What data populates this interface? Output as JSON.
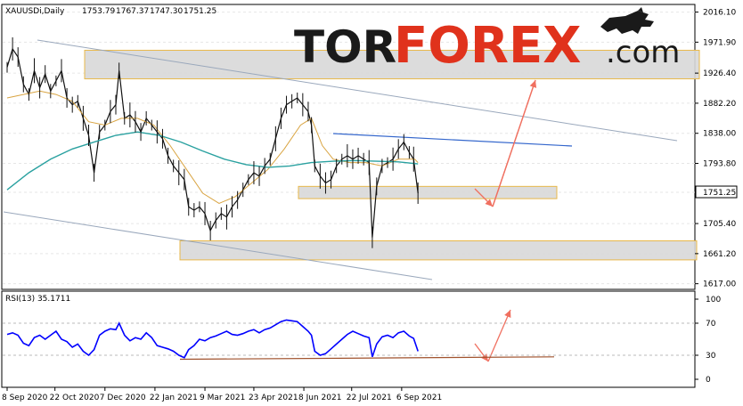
{
  "chart_data": {
    "type": "line",
    "symbol": "XAUUSDi,Daily",
    "ohlc": [
      "1753.79",
      "1767.37",
      "1747.30",
      "1751.25"
    ],
    "price_ticks": [
      "2016.10",
      "1971.90",
      "1926.40",
      "1882.20",
      "1838.00",
      "1793.80",
      "1751.25",
      "1705.40",
      "1661.20",
      "1617.00"
    ],
    "current_price": "1751.25",
    "ylim": [
      1610,
      2026
    ],
    "date_ticks": [
      "8 Sep 2020",
      "22 Oct 2020",
      "7 Dec 2020",
      "22 Jan 2021",
      "9 Mar 2021",
      "23 Apr 2021",
      "8 Jun 2021",
      "22 Jul 2021",
      "6 Sep 2021"
    ],
    "x_days": [
      0,
      44,
      90,
      136,
      182,
      227,
      273,
      317,
      363
    ],
    "series": [
      {
        "values": [
          [
            0,
            1935
          ],
          [
            5,
            1962
          ],
          [
            10,
            1950
          ],
          [
            15,
            1910
          ],
          [
            20,
            1895
          ],
          [
            25,
            1930
          ],
          [
            30,
            1905
          ],
          [
            35,
            1925
          ],
          [
            40,
            1900
          ],
          [
            45,
            1915
          ],
          [
            50,
            1930
          ],
          [
            55,
            1890
          ],
          [
            60,
            1880
          ],
          [
            65,
            1885
          ],
          [
            70,
            1860
          ],
          [
            75,
            1835
          ],
          [
            80,
            1780
          ],
          [
            85,
            1840
          ],
          [
            90,
            1850
          ],
          [
            95,
            1870
          ],
          [
            100,
            1880
          ],
          [
            103,
            1930
          ],
          [
            108,
            1860
          ],
          [
            113,
            1865
          ],
          [
            118,
            1855
          ],
          [
            123,
            1840
          ],
          [
            128,
            1860
          ],
          [
            133,
            1850
          ],
          [
            138,
            1840
          ],
          [
            143,
            1830
          ],
          [
            148,
            1805
          ],
          [
            153,
            1790
          ],
          [
            158,
            1780
          ],
          [
            163,
            1770
          ],
          [
            167,
            1730
          ],
          [
            172,
            1725
          ],
          [
            177,
            1730
          ],
          [
            182,
            1720
          ],
          [
            187,
            1695
          ],
          [
            192,
            1710
          ],
          [
            197,
            1720
          ],
          [
            202,
            1715
          ],
          [
            207,
            1730
          ],
          [
            212,
            1740
          ],
          [
            217,
            1755
          ],
          [
            222,
            1770
          ],
          [
            227,
            1780
          ],
          [
            232,
            1775
          ],
          [
            237,
            1790
          ],
          [
            242,
            1800
          ],
          [
            247,
            1830
          ],
          [
            252,
            1860
          ],
          [
            257,
            1880
          ],
          [
            262,
            1885
          ],
          [
            267,
            1890
          ],
          [
            272,
            1880
          ],
          [
            277,
            1870
          ],
          [
            280,
            1850
          ],
          [
            283,
            1790
          ],
          [
            288,
            1775
          ],
          [
            293,
            1765
          ],
          [
            298,
            1770
          ],
          [
            303,
            1790
          ],
          [
            308,
            1800
          ],
          [
            313,
            1805
          ],
          [
            318,
            1800
          ],
          [
            323,
            1805
          ],
          [
            328,
            1800
          ],
          [
            333,
            1795
          ],
          [
            336,
            1685
          ],
          [
            340,
            1760
          ],
          [
            345,
            1790
          ],
          [
            350,
            1795
          ],
          [
            355,
            1800
          ],
          [
            360,
            1815
          ],
          [
            365,
            1825
          ],
          [
            370,
            1810
          ],
          [
            374,
            1800
          ],
          [
            378,
            1750
          ]
        ]
      },
      {
        "values": [
          [
            0,
            1890
          ],
          [
            15,
            1895
          ],
          [
            30,
            1900
          ],
          [
            45,
            1895
          ],
          [
            60,
            1885
          ],
          [
            75,
            1855
          ],
          [
            90,
            1850
          ],
          [
            105,
            1860
          ],
          [
            120,
            1860
          ],
          [
            135,
            1850
          ],
          [
            150,
            1820
          ],
          [
            165,
            1785
          ],
          [
            180,
            1750
          ],
          [
            195,
            1735
          ],
          [
            210,
            1745
          ],
          [
            225,
            1765
          ],
          [
            240,
            1785
          ],
          [
            255,
            1815
          ],
          [
            270,
            1850
          ],
          [
            280,
            1860
          ],
          [
            290,
            1820
          ],
          [
            300,
            1800
          ],
          [
            315,
            1795
          ],
          [
            330,
            1795
          ],
          [
            345,
            1790
          ],
          [
            360,
            1800
          ],
          [
            375,
            1800
          ],
          [
            378,
            1795
          ]
        ]
      },
      {
        "values": [
          [
            0,
            1755
          ],
          [
            20,
            1780
          ],
          [
            40,
            1800
          ],
          [
            60,
            1815
          ],
          [
            80,
            1825
          ],
          [
            100,
            1835
          ],
          [
            120,
            1840
          ],
          [
            140,
            1835
          ],
          [
            160,
            1825
          ],
          [
            180,
            1812
          ],
          [
            200,
            1800
          ],
          [
            220,
            1792
          ],
          [
            240,
            1788
          ],
          [
            260,
            1790
          ],
          [
            280,
            1795
          ],
          [
            300,
            1797
          ],
          [
            320,
            1798
          ],
          [
            340,
            1797
          ],
          [
            360,
            1796
          ],
          [
            378,
            1793
          ]
        ]
      }
    ],
    "rsi": {
      "label": "RSI(13) 35.1711",
      "levels": [
        "100",
        "70",
        "30",
        "0"
      ],
      "values": [
        [
          0,
          56
        ],
        [
          5,
          58
        ],
        [
          10,
          55
        ],
        [
          15,
          45
        ],
        [
          20,
          42
        ],
        [
          25,
          52
        ],
        [
          30,
          55
        ],
        [
          35,
          50
        ],
        [
          40,
          55
        ],
        [
          45,
          60
        ],
        [
          50,
          50
        ],
        [
          55,
          47
        ],
        [
          60,
          40
        ],
        [
          65,
          44
        ],
        [
          70,
          35
        ],
        [
          75,
          30
        ],
        [
          80,
          37
        ],
        [
          85,
          55
        ],
        [
          90,
          60
        ],
        [
          95,
          63
        ],
        [
          100,
          62
        ],
        [
          103,
          70
        ],
        [
          108,
          55
        ],
        [
          113,
          48
        ],
        [
          118,
          52
        ],
        [
          123,
          50
        ],
        [
          128,
          58
        ],
        [
          133,
          52
        ],
        [
          138,
          42
        ],
        [
          143,
          40
        ],
        [
          148,
          38
        ],
        [
          153,
          35
        ],
        [
          158,
          30
        ],
        [
          163,
          27
        ],
        [
          167,
          37
        ],
        [
          172,
          42
        ],
        [
          177,
          50
        ],
        [
          182,
          48
        ],
        [
          187,
          52
        ],
        [
          192,
          54
        ],
        [
          197,
          57
        ],
        [
          202,
          60
        ],
        [
          207,
          56
        ],
        [
          212,
          55
        ],
        [
          217,
          57
        ],
        [
          222,
          60
        ],
        [
          227,
          62
        ],
        [
          232,
          58
        ],
        [
          237,
          62
        ],
        [
          242,
          64
        ],
        [
          247,
          68
        ],
        [
          252,
          72
        ],
        [
          257,
          74
        ],
        [
          262,
          73
        ],
        [
          267,
          72
        ],
        [
          272,
          66
        ],
        [
          277,
          60
        ],
        [
          280,
          55
        ],
        [
          283,
          35
        ],
        [
          288,
          30
        ],
        [
          293,
          32
        ],
        [
          298,
          38
        ],
        [
          303,
          44
        ],
        [
          308,
          50
        ],
        [
          313,
          56
        ],
        [
          318,
          60
        ],
        [
          323,
          57
        ],
        [
          328,
          54
        ],
        [
          333,
          52
        ],
        [
          336,
          28
        ],
        [
          340,
          44
        ],
        [
          345,
          53
        ],
        [
          350,
          55
        ],
        [
          355,
          52
        ],
        [
          360,
          58
        ],
        [
          365,
          60
        ],
        [
          370,
          54
        ],
        [
          374,
          51
        ],
        [
          378,
          35
        ]
      ]
    }
  },
  "logo": {
    "part1": "TOR",
    "part2": "FOREX",
    "part3": ".com"
  },
  "colors": {
    "price": "#111111",
    "ma_slow": "#d9a441",
    "ma_long": "#2aa1a0",
    "rsi_line": "#0000ff",
    "logo_red": "#e0321c",
    "arrow": "#f07060",
    "zone_fill": "#d8d8d8",
    "zone_border": "#e8b84a",
    "channel": "#9aa8bc",
    "resistance": "#3366cc",
    "support_rsi": "#a0522d"
  }
}
